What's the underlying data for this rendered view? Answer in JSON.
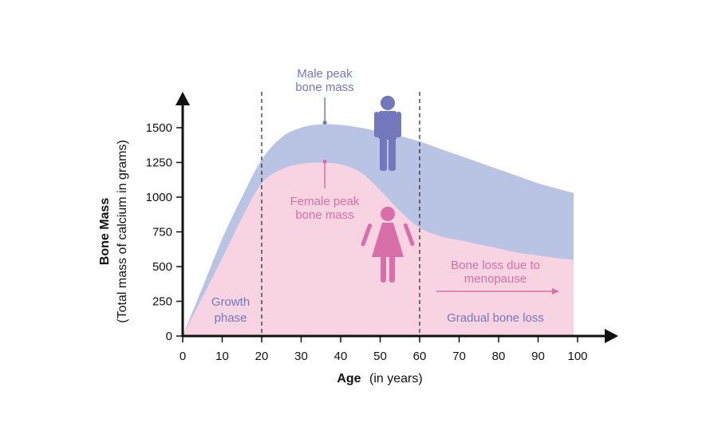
{
  "colors": {
    "male": "#7278bb",
    "male_area": "#b9c3e3",
    "female": "#d96fa8",
    "female_area": "#f8d4e3",
    "axis": "#111111"
  },
  "chart_data": {
    "type": "area",
    "xlabel_bold": "Age",
    "xlabel_rest": "(in years)",
    "ylabel_bold": "Bone Mass",
    "ylabel_rest": "(Total mass of calcium in grams)",
    "xlim": [
      0,
      100
    ],
    "ylim": [
      0,
      1500
    ],
    "xticks": [
      0,
      10,
      20,
      30,
      40,
      50,
      60,
      70,
      80,
      90,
      100
    ],
    "yticks": [
      0,
      250,
      500,
      750,
      1000,
      1250,
      1500
    ],
    "series": [
      {
        "key": "male",
        "x": [
          0,
          5,
          10,
          15,
          20,
          25,
          30,
          35,
          40,
          45,
          50,
          55,
          60,
          65,
          70,
          75,
          80,
          85,
          90,
          95,
          99
        ],
        "y": [
          0,
          350,
          700,
          1000,
          1270,
          1430,
          1500,
          1525,
          1520,
          1500,
          1470,
          1440,
          1400,
          1350,
          1300,
          1250,
          1200,
          1150,
          1100,
          1060,
          1030
        ]
      },
      {
        "key": "female",
        "x": [
          0,
          5,
          10,
          15,
          20,
          25,
          30,
          35,
          40,
          45,
          50,
          55,
          60,
          65,
          70,
          75,
          80,
          85,
          90,
          95,
          99
        ],
        "y": [
          0,
          280,
          560,
          850,
          1100,
          1200,
          1240,
          1250,
          1235,
          1180,
          1050,
          900,
          780,
          720,
          690,
          660,
          630,
          600,
          580,
          560,
          550
        ]
      }
    ],
    "dividers": [
      20,
      60
    ],
    "annotations": {
      "male_peak": {
        "line1": "Male peak",
        "line2": "bone mass",
        "age": 36,
        "value": 1525
      },
      "female_peak": {
        "line1": "Female peak",
        "line2": "bone mass",
        "age": 36,
        "value": 1250
      },
      "growth": {
        "line1": "Growth",
        "line2": "phase"
      },
      "menopause": {
        "line1": "Bone loss due to",
        "line2": "menopause"
      },
      "gradual": {
        "text": "Gradual bone loss"
      }
    }
  }
}
